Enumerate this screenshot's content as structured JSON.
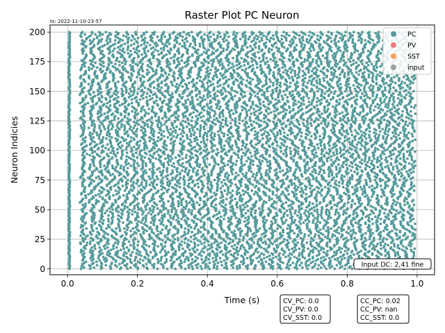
{
  "chart_data": {
    "type": "scatter",
    "title": "Raster Plot PC Neuron",
    "timestamp": "ts: 2022-11-10-23-57",
    "xlabel": "Time (s)",
    "ylabel": "Neuron Indicies",
    "xlim": [
      -0.05,
      1.05
    ],
    "ylim": [
      -5,
      206
    ],
    "xticks": [
      "0.0",
      "0.2",
      "0.4",
      "0.6",
      "0.8",
      "1.0"
    ],
    "xtick_values": [
      0.0,
      0.2,
      0.4,
      0.6,
      0.8,
      1.0
    ],
    "yticks": [
      "0",
      "25",
      "50",
      "75",
      "100",
      "125",
      "150",
      "175",
      "200"
    ],
    "ytick_values": [
      0,
      25,
      50,
      75,
      100,
      125,
      150,
      175,
      200
    ],
    "grid": true,
    "legend_position": "top-right",
    "series": [
      {
        "name": "PC",
        "color": "#559a9a",
        "points": "dense raster: neurons 0-200, spikes 0.0-1.0 s (~45 spikes per neuron, diagonal wave bands)"
      },
      {
        "name": "PV",
        "color": "#e97c7c",
        "points": []
      },
      {
        "name": "SST",
        "color": "#f4a25a",
        "points": []
      },
      {
        "name": "input",
        "color": "#9e9e9e",
        "points": []
      }
    ],
    "annotations": {
      "input_box": "Input DC: 2,41 fine",
      "cv_stats": [
        "CV_PC: 0.0",
        "CV_PV: 0.0",
        "CV_SST: 0.0"
      ],
      "cc_stats": [
        "CC_PC: 0.02",
        "CC_PV: nan",
        "CC_SST: 0.0"
      ]
    }
  }
}
